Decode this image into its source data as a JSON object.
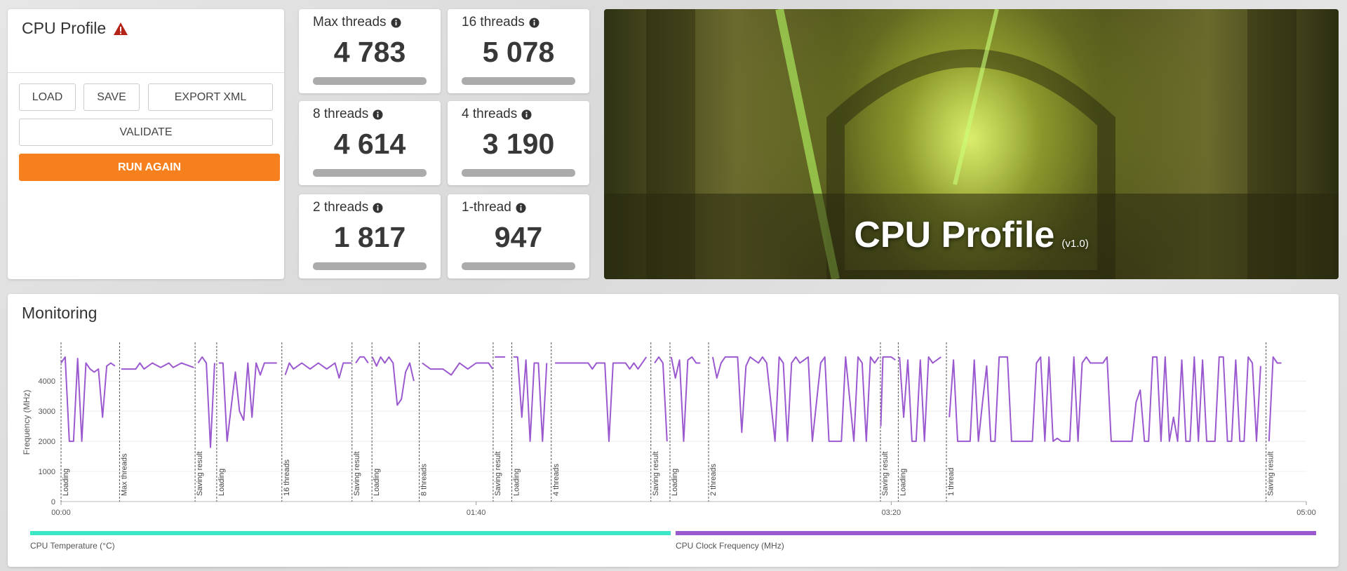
{
  "panel": {
    "title": "CPU Profile",
    "buttons": [
      "LOAD",
      "SAVE",
      "EXPORT XML",
      "VALIDATE",
      "RUN AGAIN"
    ]
  },
  "scores": [
    {
      "label": "Max threads",
      "value": "4 783"
    },
    {
      "label": "16 threads",
      "value": "5 078"
    },
    {
      "label": "8 threads",
      "value": "4 614"
    },
    {
      "label": "4 threads",
      "value": "3 190"
    },
    {
      "label": "2 threads",
      "value": "1 817"
    },
    {
      "label": "1-thread",
      "value": "947"
    }
  ],
  "banner": {
    "title": "CPU Profile",
    "version": "(v1.0)"
  },
  "monitoring": {
    "title": "Monitoring"
  },
  "chart_data": {
    "type": "line",
    "y_label": "Frequency (MHz)",
    "xlim": [
      0,
      300
    ],
    "xticks": [
      {
        "value": 0,
        "label": "00:00"
      },
      {
        "value": 100,
        "label": "01:40"
      },
      {
        "value": 200,
        "label": "03:20"
      },
      {
        "value": 300,
        "label": "05:00"
      }
    ],
    "ylim": [
      0,
      5100
    ],
    "yticks": [
      0,
      1000,
      2000,
      3000,
      4000
    ],
    "grid": true,
    "phases": [
      {
        "x": 0,
        "label": "Loading"
      },
      {
        "x": 14.1,
        "label": "Max threads"
      },
      {
        "x": 32.3,
        "label": "Saving result"
      },
      {
        "x": 37.5,
        "label": "Loading"
      },
      {
        "x": 53.2,
        "label": "16 threads"
      },
      {
        "x": 70.1,
        "label": "Saving result"
      },
      {
        "x": 74.9,
        "label": "Loading"
      },
      {
        "x": 86.3,
        "label": "8 threads"
      },
      {
        "x": 104.1,
        "label": "Saving result"
      },
      {
        "x": 108.6,
        "label": "Loading"
      },
      {
        "x": 118.1,
        "label": "4 threads"
      },
      {
        "x": 142.1,
        "label": "Saving result"
      },
      {
        "x": 146.7,
        "label": "Loading"
      },
      {
        "x": 156.0,
        "label": "2 threads"
      },
      {
        "x": 197.4,
        "label": "Saving result"
      },
      {
        "x": 201.7,
        "label": "Loading"
      },
      {
        "x": 213.3,
        "label": "1 thread"
      },
      {
        "x": 290.3,
        "label": "Saving result"
      }
    ],
    "extra_legend": [
      {
        "name": "CPU Temperature (°C)",
        "color": "#3de6c6"
      }
    ],
    "x": [
      0,
      1,
      2,
      3,
      4,
      5,
      6,
      7,
      8,
      9,
      10,
      11,
      12,
      13,
      13.5,
      14.5,
      18,
      19,
      20,
      22,
      24,
      26,
      27,
      29,
      31,
      32,
      32.5,
      33,
      34,
      35,
      36,
      37,
      37.3,
      38,
      39,
      40,
      42,
      43,
      44,
      45,
      46,
      47,
      48,
      49,
      52,
      53,
      54,
      55,
      56,
      58,
      60,
      62,
      64,
      66,
      67,
      68,
      70,
      70.3,
      71,
      72,
      73,
      74,
      74.5,
      75,
      76,
      77,
      78,
      79,
      80,
      81,
      82,
      83,
      84,
      85,
      86,
      87,
      89,
      92,
      94,
      96,
      98,
      100,
      103,
      104,
      104.3,
      104.5,
      107,
      108,
      109,
      110,
      111,
      112,
      113,
      114,
      115,
      116,
      117,
      118,
      119,
      127,
      128,
      129,
      131,
      132,
      133,
      136,
      137,
      138,
      139,
      141,
      142,
      143,
      144,
      145,
      146,
      146.5,
      147,
      148,
      149,
      150,
      151,
      152,
      153,
      154,
      155.5,
      157,
      158,
      159,
      160,
      163,
      164,
      165,
      166,
      168,
      169,
      170,
      172,
      173,
      174,
      175,
      176,
      177,
      178,
      180,
      181,
      183,
      184,
      185,
      188,
      189,
      191,
      192,
      193,
      194,
      195,
      196,
      197,
      197.3,
      197.5,
      198,
      200,
      201,
      201.5,
      202,
      203,
      204,
      205,
      206,
      207,
      208,
      209,
      210,
      212,
      213,
      214,
      215,
      216,
      219,
      220,
      221,
      222,
      223,
      224,
      225,
      226,
      228,
      229,
      234,
      235,
      236,
      237,
      238,
      239,
      240,
      241,
      243,
      244,
      245,
      246,
      247,
      248,
      251,
      252,
      253,
      258,
      259,
      260,
      261,
      262,
      263,
      264,
      265,
      266,
      267,
      268,
      269,
      270,
      271,
      272,
      273,
      274,
      275,
      276,
      278,
      279,
      280,
      281,
      282,
      283,
      284,
      285,
      286,
      287,
      288,
      289,
      290,
      291,
      292,
      293,
      294
    ],
    "series": [
      {
        "name": "CPU Clock Frequency (MHz)",
        "color": "#9b59d0",
        "values": [
          4600,
          4800,
          2000,
          2000,
          4750,
          2000,
          4600,
          4400,
          4300,
          4400,
          2800,
          4500,
          4600,
          4500,
          null,
          4400,
          4400,
          4600,
          4400,
          4600,
          4450,
          4600,
          4450,
          4600,
          4500,
          4450,
          null,
          4600,
          4800,
          4600,
          1800,
          4600,
          null,
          4600,
          4600,
          2000,
          4300,
          3000,
          2700,
          4600,
          2800,
          4600,
          4200,
          4600,
          4600,
          null,
          4200,
          4600,
          4400,
          4600,
          4400,
          4600,
          4400,
          4600,
          4100,
          4600,
          4600,
          null,
          4600,
          4800,
          4800,
          4600,
          null,
          4800,
          4500,
          4800,
          4600,
          4800,
          4600,
          3200,
          3400,
          4300,
          4600,
          4000,
          null,
          4600,
          4400,
          4400,
          4200,
          4600,
          4400,
          4600,
          4600,
          4400,
          null,
          4800,
          4800,
          null,
          4800,
          4800,
          2800,
          4700,
          2000,
          4600,
          4600,
          2000,
          4600,
          null,
          4600,
          4600,
          4400,
          4600,
          4600,
          2000,
          4600,
          4600,
          4400,
          4600,
          4400,
          4800,
          null,
          4600,
          4800,
          4600,
          2000,
          null,
          4800,
          4100,
          4700,
          2000,
          4700,
          4800,
          4600,
          4600,
          null,
          4800,
          4100,
          4600,
          4800,
          4800,
          2300,
          4500,
          4800,
          4600,
          4800,
          4600,
          2000,
          4800,
          4600,
          2000,
          4600,
          4800,
          4600,
          4800,
          2000,
          4600,
          4800,
          2000,
          2000,
          4800,
          2000,
          4800,
          4600,
          2000,
          4800,
          4600,
          4800,
          null,
          2500,
          4800,
          4800,
          4700,
          null,
          4800,
          2800,
          4700,
          2000,
          2000,
          4700,
          2000,
          4800,
          4600,
          4800,
          null,
          2800,
          4700,
          2000,
          2000,
          4700,
          2000,
          3300,
          4500,
          2000,
          2000,
          4800,
          4800,
          2000,
          2000,
          4600,
          4800,
          2000,
          4800,
          2000,
          2100,
          2000,
          2000,
          4800,
          2000,
          4600,
          4800,
          4600,
          4600,
          4800,
          2000,
          2000,
          3300,
          3700,
          2000,
          2000,
          4800,
          4800,
          2000,
          4800,
          2000,
          2800,
          2000,
          4700,
          2000,
          2000,
          4800,
          2000,
          4700,
          2000,
          2000,
          4800,
          4800,
          2000,
          2000,
          4700,
          2000,
          2000,
          4800,
          4600,
          2000,
          4500,
          null,
          2000,
          4800,
          4600,
          4600
        ]
      }
    ]
  }
}
